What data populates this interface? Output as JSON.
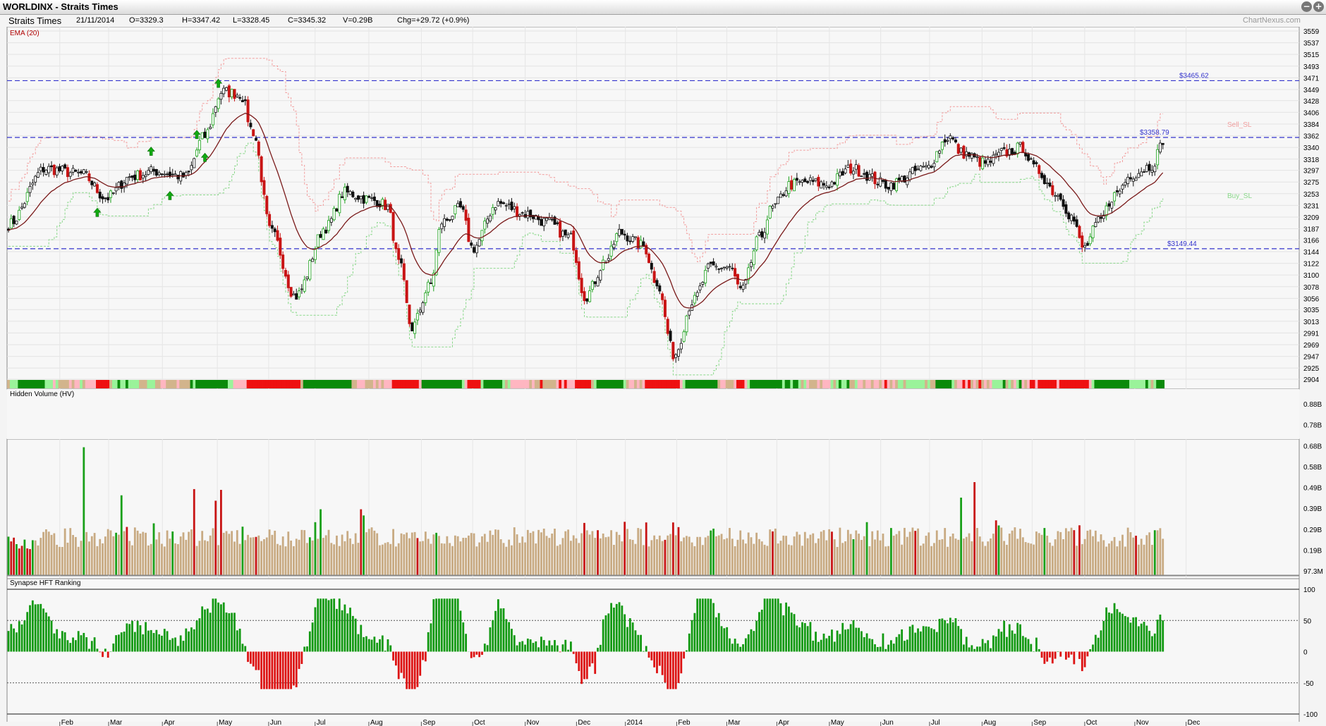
{
  "window": {
    "title": "WORLDINX - Straits Times",
    "minimize_symbol": "−",
    "add_symbol": "+"
  },
  "quote": {
    "name": "Straits Times",
    "date": "21/11/2014",
    "open": "O=3329.3",
    "high": "H=3347.42",
    "low": "L=3328.45",
    "close": "C=3345.32",
    "volume": "V=0.29B",
    "change": "Chg=+29.72 (+0.9%)",
    "watermark": "ChartNexus.com"
  },
  "colors": {
    "up": "#19a019",
    "down": "#c81414",
    "ema": "#7a1a1a",
    "level": "#3333cc",
    "vol_neutral": "#c8aa82",
    "hft_pos": "#119911",
    "hft_neg": "#dd1111"
  },
  "chart_data": [
    {
      "type": "candlestick",
      "indicator_label": "EMA (20)",
      "y_ticks": [
        "3559",
        "3537",
        "3515",
        "3493",
        "3471",
        "3449",
        "3428",
        "3406",
        "3384",
        "3362",
        "3340",
        "3318",
        "3297",
        "3275",
        "3253",
        "3231",
        "3209",
        "3187",
        "3166",
        "3144",
        "3122",
        "3100",
        "3078",
        "3056",
        "3035",
        "3013",
        "2991",
        "2969",
        "2947",
        "2925",
        "2904"
      ],
      "ylim": [
        2904,
        3559
      ],
      "x_ticks": [
        "Feb",
        "Mar",
        "Apr",
        "May",
        "Jun",
        "Jul",
        "Aug",
        "Sep",
        "Oct",
        "Nov",
        "Dec",
        "2014",
        "Feb",
        "Mar",
        "Apr",
        "May",
        "Jun",
        "Jul",
        "Aug",
        "Sep",
        "Oct",
        "Nov",
        "Dec"
      ],
      "x_tick_pos": [
        0.042,
        0.082,
        0.126,
        0.171,
        0.213,
        0.251,
        0.295,
        0.338,
        0.38,
        0.423,
        0.465,
        0.505,
        0.547,
        0.588,
        0.629,
        0.672,
        0.714,
        0.754,
        0.797,
        0.838,
        0.881,
        0.922,
        0.964
      ],
      "levels": [
        {
          "label": "$3465.62",
          "value": 3465.62
        },
        {
          "label": "$3358.79",
          "value": 3358.79
        },
        {
          "label": "$3149.44",
          "value": 3149.44
        }
      ],
      "sell_label": "Sell_SL",
      "buy_label": "Buy_SL",
      "last_close": 3345.32,
      "anchors": [
        [
          0,
          3195
        ],
        [
          0.03,
          3300
        ],
        [
          0.06,
          3290
        ],
        [
          0.08,
          3245
        ],
        [
          0.1,
          3285
        ],
        [
          0.12,
          3295
        ],
        [
          0.145,
          3285
        ],
        [
          0.16,
          3360
        ],
        [
          0.175,
          3445
        ],
        [
          0.19,
          3440
        ],
        [
          0.2,
          3370
        ],
        [
          0.215,
          3180
        ],
        [
          0.235,
          3060
        ],
        [
          0.26,
          3190
        ],
        [
          0.275,
          3255
        ],
        [
          0.3,
          3240
        ],
        [
          0.31,
          3230
        ],
        [
          0.32,
          3120
        ],
        [
          0.33,
          3000
        ],
        [
          0.345,
          3080
        ],
        [
          0.355,
          3200
        ],
        [
          0.37,
          3225
        ],
        [
          0.38,
          3150
        ],
        [
          0.4,
          3235
        ],
        [
          0.425,
          3215
        ],
        [
          0.44,
          3200
        ],
        [
          0.46,
          3170
        ],
        [
          0.472,
          3060
        ],
        [
          0.49,
          3130
        ],
        [
          0.5,
          3180
        ],
        [
          0.52,
          3155
        ],
        [
          0.53,
          3090
        ],
        [
          0.545,
          2950
        ],
        [
          0.56,
          3050
        ],
        [
          0.575,
          3115
        ],
        [
          0.59,
          3115
        ],
        [
          0.6,
          3070
        ],
        [
          0.615,
          3170
        ],
        [
          0.625,
          3225
        ],
        [
          0.64,
          3270
        ],
        [
          0.655,
          3275
        ],
        [
          0.67,
          3270
        ],
        [
          0.69,
          3300
        ],
        [
          0.72,
          3270
        ],
        [
          0.75,
          3300
        ],
        [
          0.77,
          3360
        ],
        [
          0.78,
          3330
        ],
        [
          0.8,
          3310
        ],
        [
          0.815,
          3330
        ],
        [
          0.83,
          3340
        ],
        [
          0.84,
          3300
        ],
        [
          0.86,
          3250
        ],
        [
          0.87,
          3210
        ],
        [
          0.88,
          3150
        ],
        [
          0.893,
          3200
        ],
        [
          0.905,
          3250
        ],
        [
          0.92,
          3290
        ],
        [
          0.935,
          3305
        ],
        [
          0.945,
          3345
        ]
      ]
    },
    {
      "type": "bar",
      "indicator_label": "Hidden Volume (HV)",
      "y_ticks": [
        "0.88B",
        "0.78B",
        "0.68B",
        "0.58B",
        "0.49B",
        "0.39B",
        "0.29B",
        "0.19B",
        "97.3M"
      ]
    },
    {
      "type": "bar",
      "indicator_label": "Synapse HFT Ranking",
      "y_ticks": [
        "100",
        "50",
        "0",
        "-50",
        "-100"
      ]
    }
  ]
}
